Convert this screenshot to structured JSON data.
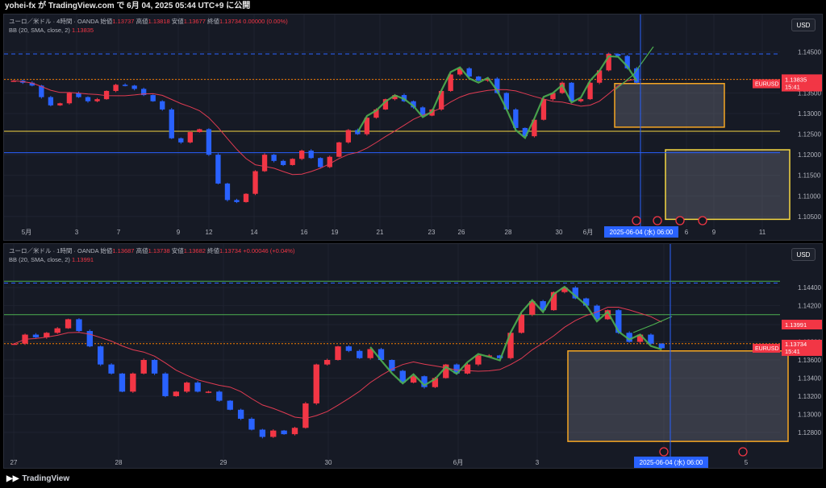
{
  "header": {
    "text": "yohei-fx が TradingView.com で 6月 04, 2025 05:44 UTC+9 に公開"
  },
  "footer": {
    "logo": "TradingView"
  },
  "panes": [
    {
      "legend_line1": "ユーロ／米ドル · 4時間 · OANDA",
      "open_label": "始値",
      "open": "1.13737",
      "high_label": "高値",
      "high": "1.13818",
      "low_label": "安値",
      "low": "1.13677",
      "close_label": "終値",
      "close": "1.13734",
      "change": "0.00000 (0.00%)",
      "bb_label": "BB (20, SMA, close, 2)",
      "bb_value": "1.13835",
      "currency": "USD",
      "symbol": "EURUSD",
      "price_tag": "1.13734",
      "time_tag": "15:41",
      "bb_tag": "1.13835",
      "cursor_date": "2025-06-04 (水)  06:00"
    },
    {
      "legend_line1": "ユーロ／米ドル · 1時間 · OANDA",
      "open_label": "始値",
      "open": "1.13687",
      "high_label": "高値",
      "high": "1.13738",
      "low_label": "安値",
      "low": "1.13682",
      "close_label": "終値",
      "close": "1.13734",
      "change": "+0.00046 (+0.04%)",
      "bb_label": "BB (20, SMA, close, 2)",
      "bb_value": "1.13991",
      "currency": "USD",
      "symbol": "EURUSD",
      "price_tag": "1.13734",
      "time_tag": "15:41",
      "bb_tag": "1.13991",
      "cursor_date": "2025-06-04 (水)  06:00"
    }
  ],
  "chart_data": [
    {
      "type": "candlestick",
      "title": "ユーロ／米ドル · 4時間 · OANDA",
      "ylim": [
        1.1032,
        1.1486
      ],
      "y_ticks": [
        1.145,
        1.1383,
        1.135,
        1.13,
        1.125,
        1.12,
        1.115,
        1.11,
        1.105
      ],
      "y_tick_labels": [
        "1.14500",
        "1.13835",
        "1.13500",
        "1.13000",
        "1.12500",
        "1.12000",
        "1.11500",
        "1.11000",
        "1.10500"
      ],
      "x_tick_labels": [
        "5月",
        "3",
        "7",
        "9",
        "12",
        "14",
        "16",
        "19",
        "21",
        "23",
        "26",
        "28",
        "30",
        "6月",
        "4",
        "6",
        "9",
        "11"
      ],
      "close_path": [
        1.138,
        1.1375,
        1.1368,
        1.134,
        1.132,
        1.1325,
        1.135,
        1.134,
        1.133,
        1.1335,
        1.1355,
        1.137,
        1.1368,
        1.136,
        1.1345,
        1.133,
        1.131,
        1.124,
        1.123,
        1.1255,
        1.1262,
        1.12,
        1.113,
        1.109,
        1.1085,
        1.1105,
        1.116,
        1.12,
        1.1185,
        1.1175,
        1.119,
        1.121,
        1.1192,
        1.117,
        1.1195,
        1.123,
        1.126,
        1.125,
        1.129,
        1.131,
        1.1335,
        1.1345,
        1.133,
        1.1315,
        1.1295,
        1.131,
        1.1355,
        1.1395,
        1.141,
        1.139,
        1.138,
        1.1385,
        1.135,
        1.131,
        1.1265,
        1.1245,
        1.1285,
        1.1335,
        1.135,
        1.1375,
        1.133,
        1.1335,
        1.1375,
        1.1405,
        1.1445,
        1.144,
        1.141,
        1.1375
      ],
      "horizontal_levels": [
        {
          "price": 1.1445,
          "color": "#2962ff",
          "style": "dashed"
        },
        {
          "price": 1.1383,
          "color": "#f57c00",
          "style": "dotted"
        },
        {
          "price": 1.1257,
          "color": "#f5d742",
          "style": "solid"
        },
        {
          "price": 1.1205,
          "color": "#2962ff",
          "style": "solid"
        }
      ],
      "zones": [
        {
          "top": 1.1373,
          "bottom": 1.1267,
          "color": "#f5a623"
        },
        {
          "top": 1.1212,
          "bottom": 1.1043,
          "color": "#f5d742"
        }
      ]
    },
    {
      "type": "candlestick",
      "title": "ユーロ／米ドル · 1時間 · OANDA",
      "ylim": [
        1.1255,
        1.1465
      ],
      "y_ticks": [
        1.144,
        1.142,
        1.1399,
        1.138,
        1.136,
        1.134,
        1.132,
        1.13,
        1.128
      ],
      "y_tick_labels": [
        "1.14400",
        "1.14200",
        "1.13991",
        "1.13800",
        "1.13600",
        "1.13400",
        "1.13200",
        "1.13000",
        "1.12800"
      ],
      "x_tick_labels": [
        "27",
        "28",
        "29",
        "30",
        "6月",
        "3",
        "4",
        "5"
      ],
      "close_path": [
        1.1378,
        1.1388,
        1.1385,
        1.139,
        1.1395,
        1.1405,
        1.1392,
        1.1375,
        1.1355,
        1.1345,
        1.1325,
        1.1345,
        1.136,
        1.1345,
        1.132,
        1.1325,
        1.1335,
        1.1325,
        1.1325,
        1.1315,
        1.1305,
        1.1295,
        1.1283,
        1.1275,
        1.1282,
        1.1278,
        1.1285,
        1.1312,
        1.1355,
        1.136,
        1.1375,
        1.137,
        1.1362,
        1.1372,
        1.136,
        1.1348,
        1.1335,
        1.1342,
        1.133,
        1.134,
        1.1355,
        1.1345,
        1.1355,
        1.1365,
        1.1365,
        1.1362,
        1.139,
        1.141,
        1.1425,
        1.1415,
        1.1435,
        1.144,
        1.1428,
        1.142,
        1.1405,
        1.1415,
        1.139,
        1.138,
        1.1388,
        1.1378,
        1.1373
      ],
      "horizontal_levels": [
        {
          "price": 1.1447,
          "color": "#4caf50",
          "style": "solid"
        },
        {
          "price": 1.1445,
          "color": "#2962ff",
          "style": "dashed"
        },
        {
          "price": 1.141,
          "color": "#4caf50",
          "style": "solid"
        },
        {
          "price": 1.1378,
          "color": "#f57c00",
          "style": "dotted"
        }
      ],
      "zones": [
        {
          "top": 1.137,
          "bottom": 1.127,
          "color": "#f5a623"
        }
      ]
    }
  ]
}
